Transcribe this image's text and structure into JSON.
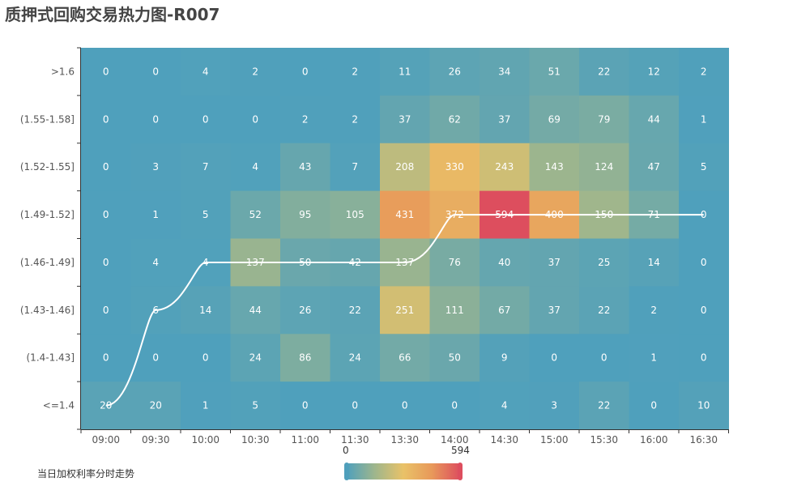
{
  "title": "质押式回购交易热力图-R007",
  "chart_data": {
    "type": "heatmap",
    "title": "质押式回购交易热力图-R007",
    "x_categories": [
      "09:00",
      "09:30",
      "10:00",
      "10:30",
      "11:00",
      "11:30",
      "13:30",
      "14:00",
      "14:30",
      "15:00",
      "15:30",
      "16:00",
      "16:30"
    ],
    "y_categories": [
      ">1.6",
      "(1.55-1.58]",
      "(1.52-1.55]",
      "(1.49-1.52]",
      "(1.46-1.49]",
      "(1.43-1.46]",
      "(1.4-1.43]",
      "<=1.4"
    ],
    "values": [
      [
        0,
        0,
        4,
        2,
        0,
        2,
        11,
        26,
        34,
        51,
        22,
        12,
        2
      ],
      [
        0,
        0,
        0,
        0,
        2,
        2,
        37,
        62,
        37,
        69,
        79,
        44,
        1
      ],
      [
        0,
        3,
        7,
        4,
        43,
        7,
        208,
        330,
        243,
        143,
        124,
        47,
        5
      ],
      [
        0,
        1,
        5,
        52,
        95,
        105,
        431,
        372,
        594,
        400,
        150,
        71,
        0
      ],
      [
        0,
        4,
        4,
        137,
        50,
        42,
        137,
        76,
        40,
        37,
        25,
        14,
        0
      ],
      [
        0,
        6,
        14,
        44,
        26,
        22,
        251,
        111,
        67,
        37,
        22,
        2,
        0
      ],
      [
        0,
        0,
        0,
        24,
        86,
        24,
        66,
        50,
        9,
        0,
        0,
        1,
        0
      ],
      [
        20,
        20,
        1,
        5,
        0,
        0,
        0,
        0,
        4,
        3,
        22,
        0,
        10
      ]
    ],
    "visual_map": {
      "min": 0,
      "max": 594,
      "min_label": "0",
      "max_label": "594",
      "colors": [
        "#4fa0bc",
        "#9fb68c",
        "#e9c268",
        "#e8995a",
        "#dd4e5e"
      ]
    },
    "trend_series": {
      "name": "当日加权利率分时走势",
      "y_values": [
        "<=1.4",
        "(1.43-1.46]",
        "(1.46-1.49]",
        "(1.46-1.49]",
        "(1.46-1.49]",
        "(1.46-1.49]",
        "(1.46-1.49]",
        "(1.49-1.52]",
        "(1.49-1.52]",
        "(1.49-1.52]",
        "(1.49-1.52]",
        "(1.49-1.52]",
        "(1.49-1.52]"
      ],
      "color": "#ffffff"
    }
  }
}
